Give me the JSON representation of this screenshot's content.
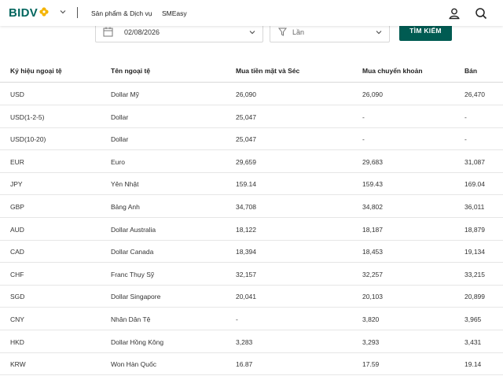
{
  "header": {
    "logo_text": "BIDV",
    "nav": [
      "Sản phẩm & Dịch vụ",
      "SMEasy"
    ]
  },
  "filters": {
    "date_value": "02/08/2026",
    "type_value": "Lần",
    "search_label": "TÌM KIẾM"
  },
  "table": {
    "headers": [
      "Ký hiệu ngoại tệ",
      "Tên ngoại tệ",
      "Mua tiền mặt và Séc",
      "Mua chuyển khoản",
      "Bán"
    ],
    "rows": [
      [
        "USD",
        "Dollar Mỹ",
        "26,090",
        "26,090",
        "26,470"
      ],
      [
        "USD(1-2-5)",
        "Dollar",
        "25,047",
        "-",
        "-"
      ],
      [
        "USD(10-20)",
        "Dollar",
        "25,047",
        "-",
        "-"
      ],
      [
        "EUR",
        "Euro",
        "29,659",
        "29,683",
        "31,087"
      ],
      [
        "JPY",
        "Yên Nhật",
        "159.14",
        "159.43",
        "169.04"
      ],
      [
        "GBP",
        "Bảng Anh",
        "34,708",
        "34,802",
        "36,011"
      ],
      [
        "AUD",
        "Dollar Australia",
        "18,122",
        "18,187",
        "18,879"
      ],
      [
        "CAD",
        "Dollar Canada",
        "18,394",
        "18,453",
        "19,134"
      ],
      [
        "CHF",
        "Franc Thụy Sỹ",
        "32,157",
        "32,257",
        "33,215"
      ],
      [
        "SGD",
        "Dollar Singapore",
        "20,041",
        "20,103",
        "20,899"
      ],
      [
        "CNY",
        "Nhân Dân Tệ",
        "-",
        "3,820",
        "3,965"
      ],
      [
        "HKD",
        "Dollar Hồng Kông",
        "3,283",
        "3,293",
        "3,431"
      ],
      [
        "KRW",
        "Won Hàn Quốc",
        "16.87",
        "17.59",
        "19.14"
      ]
    ]
  },
  "colors": {
    "brand": "#00665e",
    "button": "#005b52",
    "accent": "#f4b400"
  },
  "icons": [
    "logo-flower-icon",
    "chevron-down-icon",
    "user-icon",
    "search-icon",
    "calendar-icon",
    "filter-icon"
  ]
}
